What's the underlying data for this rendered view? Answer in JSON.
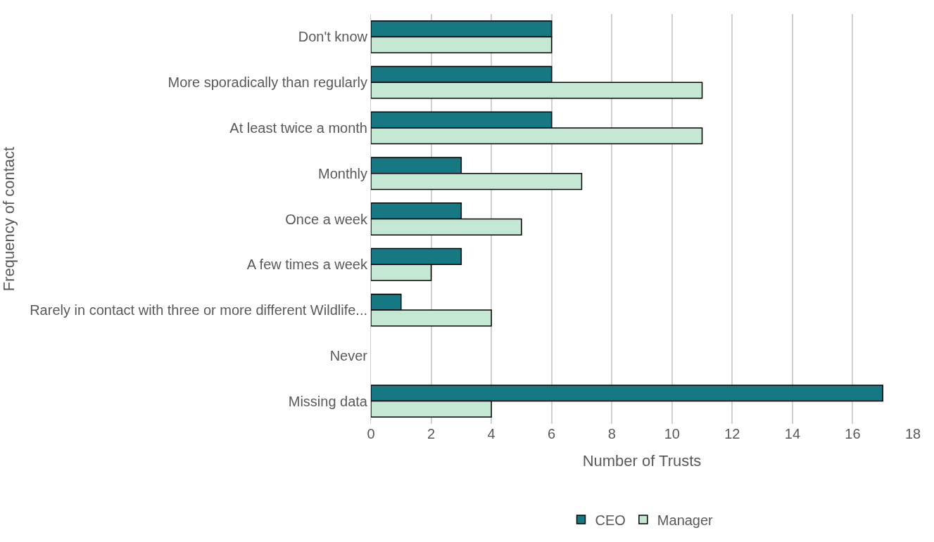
{
  "chart_data": {
    "type": "bar",
    "orientation": "horizontal",
    "xlabel": "Number of Trusts",
    "ylabel": "Frequency of contact",
    "categories": [
      "Don't know",
      "More sporadically than regularly",
      "At least twice a month",
      "Monthly",
      "Once a week",
      "A few times a week",
      "Rarely in contact with three or more different Wildlife...",
      "Never",
      "Missing data"
    ],
    "series": [
      {
        "name": "CEO",
        "color": "#167882",
        "values": [
          6,
          6,
          6,
          3,
          3,
          3,
          1,
          0,
          17
        ]
      },
      {
        "name": "Manager",
        "color": "#c4e8d4",
        "values": [
          6,
          11,
          11,
          7,
          5,
          2,
          4,
          0,
          4
        ]
      }
    ],
    "xlim": [
      0,
      18
    ],
    "xticks": [
      0,
      2,
      4,
      6,
      8,
      10,
      12,
      14,
      16,
      18
    ],
    "grid": "x",
    "legend": "bottom"
  }
}
